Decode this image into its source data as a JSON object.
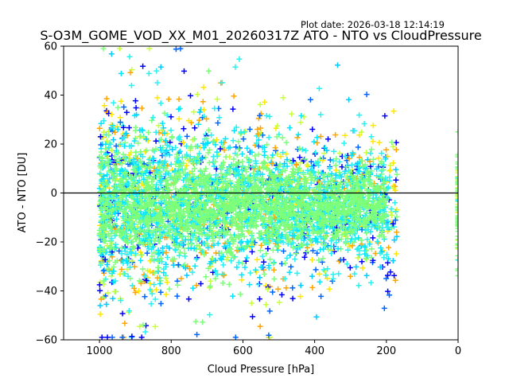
{
  "chart_data": {
    "type": "scatter",
    "title": "S-O3M_GOME_VOD_XX_M01_20260317Z ATO - NTO vs CloudPressure",
    "plot_date": "Plot date: 2026-03-18 12:14:19",
    "xlabel": "Cloud Pressure [hPa]",
    "ylabel": "ATO - NTO [DU]",
    "xlim": [
      1100,
      0
    ],
    "ylim": [
      -60,
      60
    ],
    "x_ticks": [
      1000,
      800,
      600,
      400,
      200,
      0
    ],
    "y_ticks": [
      -60,
      -40,
      -20,
      0,
      20,
      40,
      60
    ],
    "x_tick_labels": [
      "1000",
      "800",
      "600",
      "400",
      "200",
      "0"
    ],
    "y_tick_labels": [
      "−60",
      "−40",
      "−20",
      "0",
      "20",
      "40",
      "60"
    ],
    "reference_line_y": 0,
    "marker": "+",
    "colors": [
      "#0000ff",
      "#0066ff",
      "#00ccff",
      "#29f0f0",
      "#7dff7a",
      "#c8ff3c",
      "#ffe600",
      "#ffa500"
    ],
    "grid": false,
    "series_note": "dense point cloud; bulk of points between 1000 and 180 hPa spanning roughly -55 to +55 DU, concentrated around -5 DU, plus a thin column at 0 hPa"
  }
}
